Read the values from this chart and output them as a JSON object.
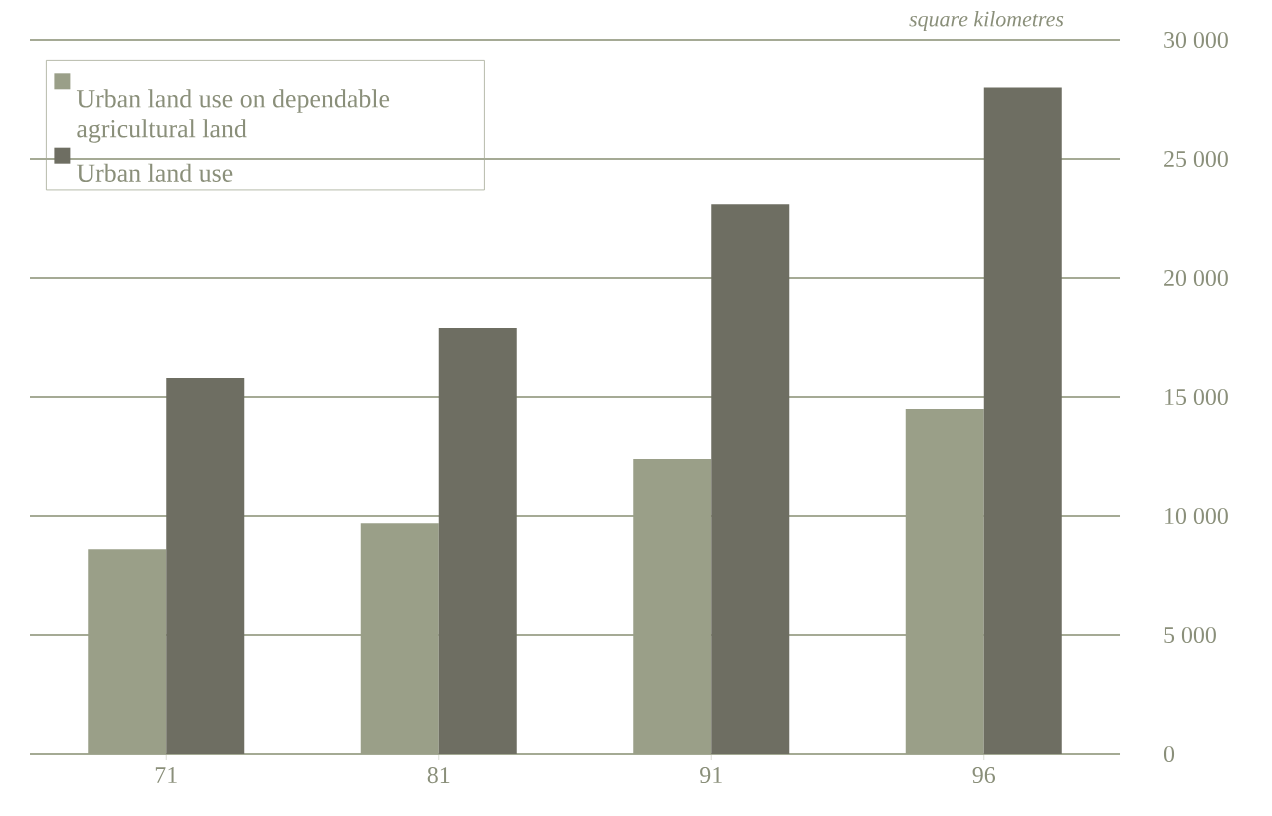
{
  "chart_data": {
    "type": "bar",
    "ylabel": "square kilometres",
    "categories": [
      "71",
      "81",
      "91",
      "96"
    ],
    "series": [
      {
        "name": "Urban land use on dependable agricultural land",
        "color": "#9a9f88",
        "values": [
          8600,
          9700,
          12400,
          14500
        ]
      },
      {
        "name": "Urban land use",
        "color": "#6e6e62",
        "values": [
          15800,
          17900,
          23100,
          28000
        ]
      }
    ],
    "ylim": [
      0,
      30000
    ],
    "yticks": [
      0,
      {
        "value": 5000,
        "label": "5 000"
      },
      {
        "value": 10000,
        "label": "10 000"
      },
      {
        "value": 15000,
        "label": "15 000"
      },
      {
        "value": 20000,
        "label": "20 000"
      },
      {
        "value": 25000,
        "label": "25 000"
      },
      {
        "value": 30000,
        "label": "30 000"
      }
    ],
    "grid": "y",
    "legend": "top left"
  }
}
